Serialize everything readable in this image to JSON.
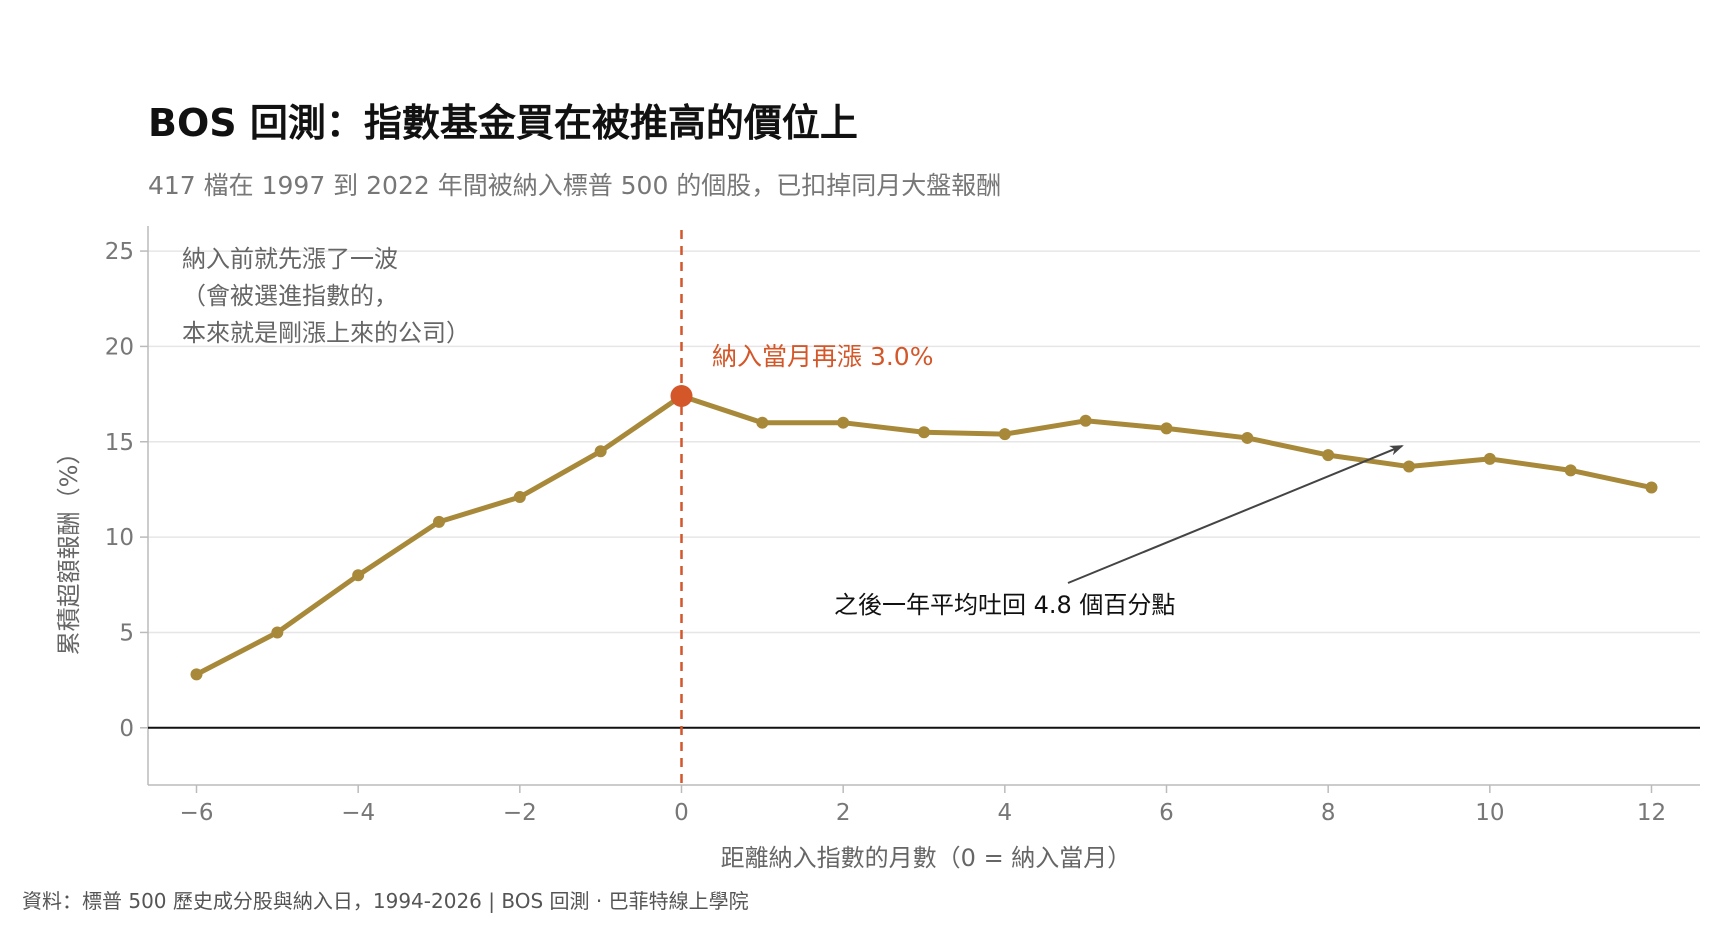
{
  "title": "BOS 回測：指數基金買在被推高的價位上",
  "subtitle": "417 檔在 1997 到 2022 年間被納入標普 500 的個股，已扣掉同月大盤報酬",
  "source": "資料：標普 500 歷史成分股與納入日，1994-2026 | BOS 回測 ·  巴菲特線上學院",
  "colors": {
    "line": "#a8893a",
    "highlight": "#d4572a",
    "grid": "#e6e6e6",
    "zero_line": "#111111",
    "arrow": "#444444"
  },
  "chart_data": {
    "type": "line",
    "xlabel": "距離納入指數的月數（0 = 納入當月）",
    "ylabel": "累積超額報酬（%）",
    "xlim": [
      -6.6,
      12.6
    ],
    "ylim": [
      -3,
      26
    ],
    "x_ticks": [
      -6,
      -4,
      -2,
      0,
      2,
      4,
      6,
      8,
      10,
      12
    ],
    "x_tick_labels": [
      "−6",
      "−4",
      "−2",
      "0",
      "2",
      "4",
      "6",
      "8",
      "10",
      "12"
    ],
    "y_ticks": [
      0,
      5,
      10,
      15,
      20,
      25
    ],
    "y_tick_labels": [
      "0",
      "5",
      "10",
      "15",
      "20",
      "25"
    ],
    "grid": "horizontal",
    "series": [
      {
        "x": [
          -6,
          -5,
          -4,
          -3,
          -2,
          -1,
          0,
          1,
          2,
          3,
          4,
          5,
          6,
          7,
          8,
          9,
          10,
          11,
          12
        ],
        "values": [
          2.8,
          5.0,
          8.0,
          10.8,
          12.1,
          14.5,
          17.4,
          16.0,
          16.0,
          15.5,
          15.4,
          16.1,
          15.7,
          15.2,
          14.3,
          13.7,
          14.1,
          13.5,
          12.6
        ]
      }
    ],
    "highlight_x": 0,
    "vline_x": 0,
    "annotations": {
      "pre_run": [
        "納入前就先漲了一波",
        "（會被選進指數的，",
        "本來就是剛漲上來的公司）"
      ],
      "inclusion_month": "納入當月再漲 3.0%",
      "giveback": "之後一年平均吐回 4.8 個百分點"
    }
  }
}
